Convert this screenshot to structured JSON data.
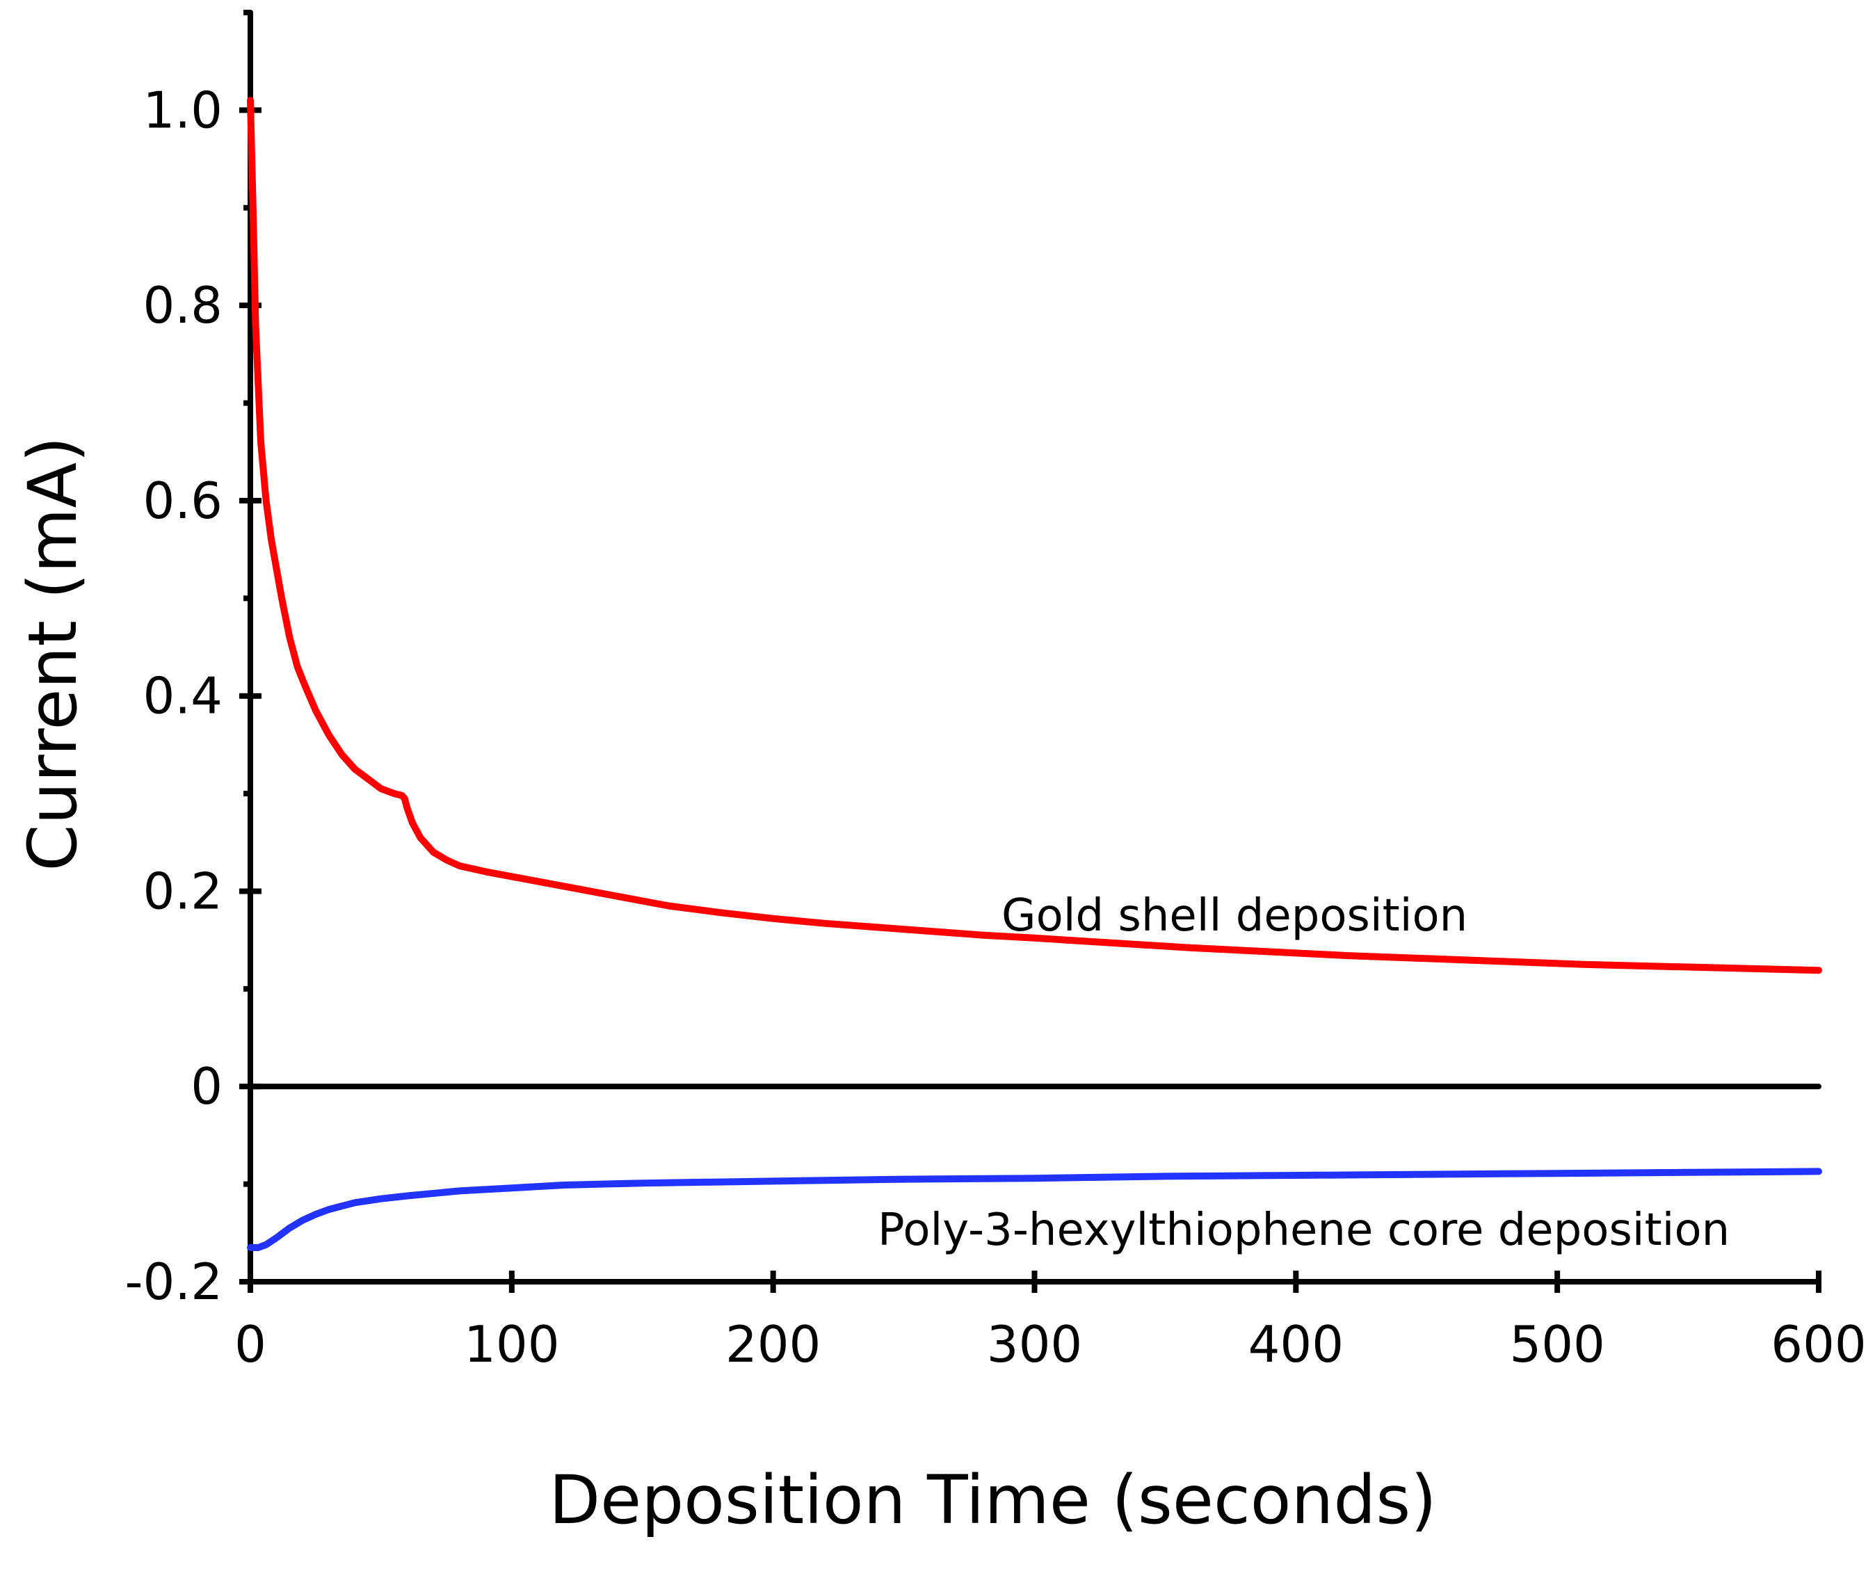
{
  "chart_data": {
    "type": "line",
    "xlabel": "Deposition Time (seconds)",
    "ylabel": "Current (mA)",
    "xlim": [
      0,
      600
    ],
    "ylim": [
      -0.2,
      1.1
    ],
    "xticks": [
      0,
      100,
      200,
      300,
      400,
      500,
      600
    ],
    "xtick_labels": [
      "0",
      "100",
      "200",
      "300",
      "400",
      "500",
      "600"
    ],
    "yticks": [
      -0.2,
      0,
      0.2,
      0.4,
      0.6,
      0.8,
      1.0
    ],
    "ytick_labels": [
      "-0.2",
      "0",
      "0.2",
      "0.4",
      "0.6",
      "0.8",
      "1.0"
    ],
    "y_minor_ticks": [
      -0.1,
      0.1,
      0.3,
      0.5,
      0.7,
      0.9,
      1.1
    ],
    "grid": false,
    "zero_line": true,
    "series": [
      {
        "annotation": "Gold shell deposition",
        "color": "#ff0000",
        "x": [
          0,
          1,
          2,
          4,
          6,
          8,
          10,
          12,
          15,
          18,
          21,
          25,
          30,
          35,
          40,
          45,
          50,
          55,
          58,
          59,
          60,
          62,
          65,
          70,
          75,
          80,
          90,
          100,
          110,
          120,
          140,
          160,
          180,
          200,
          220,
          240,
          260,
          280,
          300,
          330,
          360,
          390,
          420,
          450,
          480,
          510,
          540,
          570,
          600
        ],
        "y": [
          1.01,
          0.9,
          0.78,
          0.66,
          0.6,
          0.56,
          0.53,
          0.5,
          0.46,
          0.43,
          0.41,
          0.385,
          0.36,
          0.34,
          0.325,
          0.315,
          0.305,
          0.3,
          0.298,
          0.295,
          0.285,
          0.27,
          0.255,
          0.24,
          0.232,
          0.226,
          0.22,
          0.215,
          0.21,
          0.205,
          0.195,
          0.185,
          0.178,
          0.172,
          0.167,
          0.163,
          0.159,
          0.155,
          0.152,
          0.147,
          0.142,
          0.138,
          0.134,
          0.131,
          0.128,
          0.125,
          0.123,
          0.121,
          0.119
        ]
      },
      {
        "annotation": "Poly-3-hexylthiophene core deposition",
        "color": "#2233ff",
        "x": [
          0,
          3,
          6,
          10,
          15,
          20,
          25,
          30,
          40,
          50,
          60,
          80,
          100,
          120,
          150,
          200,
          250,
          300,
          350,
          400,
          450,
          500,
          550,
          600
        ],
        "y": [
          -0.165,
          -0.165,
          -0.162,
          -0.155,
          -0.145,
          -0.137,
          -0.131,
          -0.126,
          -0.119,
          -0.115,
          -0.112,
          -0.107,
          -0.104,
          -0.101,
          -0.099,
          -0.097,
          -0.095,
          -0.094,
          -0.092,
          -0.091,
          -0.09,
          -0.089,
          -0.088,
          -0.087
        ]
      }
    ]
  }
}
